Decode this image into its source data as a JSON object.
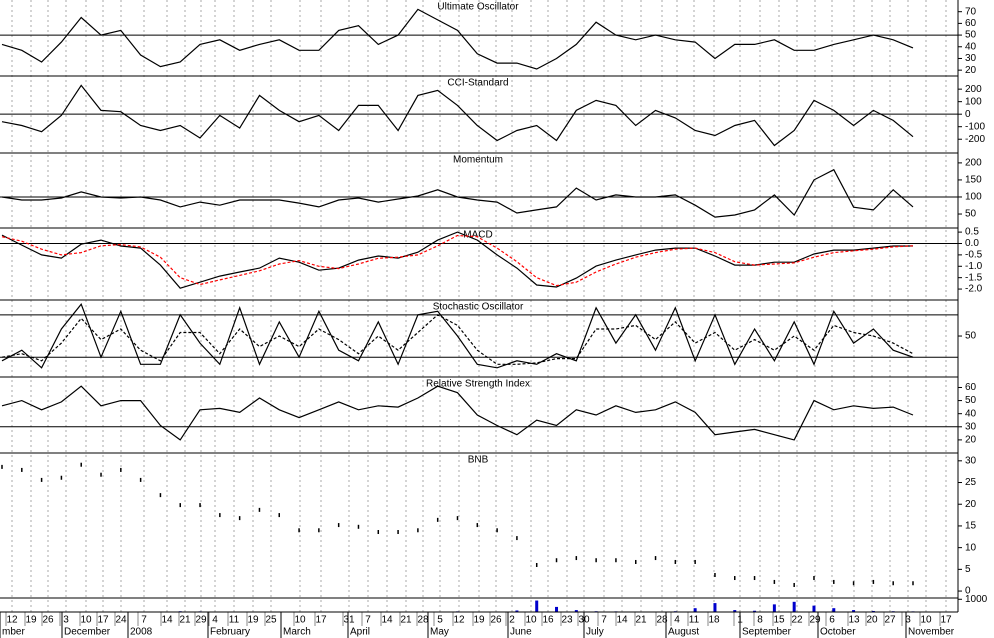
{
  "chart_data": [
    {
      "type": "line",
      "title": "Ultimate Oscillator",
      "ylim": [
        15,
        80
      ],
      "yticks": [
        70,
        60,
        50,
        40,
        30,
        20
      ],
      "hlines": [
        50
      ],
      "series": [
        {
          "color": "#000000",
          "values": [
            42,
            37,
            27,
            44,
            65,
            50,
            54,
            33,
            23,
            27,
            42,
            46,
            37,
            42,
            46,
            37,
            37,
            54,
            58,
            42,
            50,
            72,
            63,
            54,
            34,
            26,
            26,
            21,
            30,
            42,
            61,
            50,
            46,
            50,
            46,
            44,
            30,
            42,
            42,
            46,
            37,
            37,
            42,
            46,
            50,
            46,
            39
          ]
        }
      ]
    },
    {
      "type": "line",
      "title": "CCI-Standard",
      "ylim": [
        -310,
        305
      ],
      "yticks": [
        200,
        100,
        0,
        -100,
        -200
      ],
      "hlines": [
        0
      ],
      "series": [
        {
          "color": "#000000",
          "values": [
            -60,
            -90,
            -140,
            -10,
            230,
            30,
            20,
            -90,
            -130,
            -90,
            -190,
            -10,
            -110,
            150,
            30,
            -60,
            -10,
            -130,
            70,
            70,
            -130,
            150,
            190,
            70,
            -90,
            -210,
            -130,
            -90,
            -210,
            30,
            110,
            70,
            -90,
            30,
            -30,
            -130,
            -170,
            -90,
            -50,
            -250,
            -130,
            110,
            30,
            -90,
            30,
            -50,
            -180
          ]
        }
      ]
    },
    {
      "type": "line",
      "title": "Momentum",
      "ylim": [
        9,
        229
      ],
      "yticks": [
        200,
        150,
        100,
        50
      ],
      "hlines": [
        100
      ],
      "series": [
        {
          "color": "#000000",
          "values": [
            100,
            91,
            91,
            97,
            115,
            100,
            97,
            100,
            91,
            71,
            85,
            76,
            91,
            91,
            91,
            82,
            71,
            91,
            97,
            85,
            94,
            103,
            121,
            100,
            91,
            85,
            53,
            62,
            71,
            126,
            91,
            106,
            100,
            100,
            106,
            76,
            41,
            47,
            62,
            106,
            47,
            150,
            180,
            70,
            62,
            121,
            71
          ]
        }
      ]
    },
    {
      "type": "line",
      "title": "MACD",
      "ylim": [
        -2.48,
        0.68
      ],
      "yticks": [
        0.5,
        {
          "value": 0,
          "label": "0.0"
        },
        -0.5,
        {
          "value": -1,
          "label": "-1.0"
        },
        -1.5,
        {
          "value": -2,
          "label": "-2.0"
        }
      ],
      "hlines": [
        0
      ],
      "series": [
        {
          "color": "#000000",
          "values": [
            0.37,
            -0.07,
            -0.5,
            -0.64,
            -0.03,
            0.15,
            -0.11,
            -0.2,
            -0.95,
            -1.96,
            -1.7,
            -1.43,
            -1.25,
            -1.08,
            -0.64,
            -0.82,
            -1.17,
            -1.08,
            -0.73,
            -0.55,
            -0.64,
            -0.38,
            0.15,
            0.5,
            0.15,
            -0.5,
            -1.08,
            -1.82,
            -1.91,
            -1.52,
            -0.99,
            -0.73,
            -0.5,
            -0.29,
            -0.2,
            -0.2,
            -0.55,
            -0.95,
            -0.95,
            -0.82,
            -0.82,
            -0.46,
            -0.29,
            -0.29,
            -0.2,
            -0.11,
            -0.11
          ]
        },
        {
          "color": "#ff0000",
          "style": "dashed",
          "values": [
            0.3,
            0.1,
            -0.25,
            -0.5,
            -0.4,
            -0.1,
            -0.05,
            -0.15,
            -0.6,
            -1.5,
            -1.8,
            -1.6,
            -1.4,
            -1.2,
            -0.9,
            -0.75,
            -1.0,
            -1.1,
            -0.9,
            -0.65,
            -0.6,
            -0.5,
            -0.1,
            0.35,
            0.3,
            -0.2,
            -0.8,
            -1.5,
            -1.85,
            -1.7,
            -1.25,
            -0.9,
            -0.6,
            -0.4,
            -0.25,
            -0.2,
            -0.4,
            -0.8,
            -0.95,
            -0.9,
            -0.85,
            -0.6,
            -0.4,
            -0.32,
            -0.25,
            -0.15,
            -0.1
          ]
        }
      ]
    },
    {
      "type": "line",
      "title": "Stochastic Oscillator",
      "ylim": [
        -8,
        101
      ],
      "yticks": [
        50
      ],
      "hlines": [
        80,
        20
      ],
      "series": [
        {
          "color": "#000000",
          "values": [
            15,
            30,
            5,
            60,
            95,
            20,
            85,
            10,
            10,
            80,
            40,
            10,
            90,
            10,
            70,
            20,
            85,
            30,
            15,
            70,
            10,
            80,
            85,
            50,
            10,
            5,
            15,
            10,
            25,
            15,
            90,
            40,
            80,
            30,
            90,
            15,
            80,
            10,
            60,
            15,
            70,
            10,
            85,
            40,
            60,
            30,
            20
          ]
        },
        {
          "color": "#000000",
          "style": "dashed",
          "values": [
            20,
            25,
            15,
            40,
            75,
            45,
            60,
            30,
            15,
            55,
            55,
            25,
            60,
            35,
            50,
            35,
            60,
            45,
            25,
            50,
            30,
            55,
            80,
            65,
            30,
            10,
            10,
            12,
            18,
            18,
            60,
            60,
            65,
            45,
            70,
            40,
            55,
            30,
            45,
            30,
            50,
            30,
            65,
            55,
            50,
            40,
            25
          ]
        }
      ]
    },
    {
      "type": "line",
      "title": "Relative Strength Index",
      "ylim": [
        10,
        68
      ],
      "yticks": [
        60,
        50,
        40,
        30,
        20
      ],
      "hlines": [
        30
      ],
      "series": [
        {
          "color": "#000000",
          "values": [
            46,
            50,
            43,
            49,
            61,
            46,
            50,
            50,
            31,
            20,
            43,
            44,
            41,
            52,
            43,
            37,
            43,
            49,
            43,
            46,
            45,
            52,
            61,
            56,
            39,
            31,
            24,
            35,
            31,
            43,
            39,
            46,
            41,
            43,
            49,
            41,
            24,
            26,
            28,
            24,
            20,
            50,
            43,
            46,
            44,
            45,
            39
          ]
        }
      ]
    },
    {
      "type": "price",
      "title": "BNB",
      "ylim": [
        -1.6,
        31.8
      ],
      "yticks": [
        30,
        25,
        20,
        15,
        10,
        5,
        0
      ],
      "series": [
        {
          "color": "#000000",
          "values": [
            28.6,
            27.9,
            25.6,
            26.1,
            29.1,
            26.8,
            27.9,
            25.6,
            22.1,
            19.8,
            19.8,
            17.5,
            16.8,
            18.7,
            17.5,
            14.0,
            14.0,
            15.2,
            14.8,
            13.6,
            13.6,
            14.0,
            16.4,
            16.8,
            15.2,
            14.0,
            12.2,
            6.0,
            7.1,
            7.6,
            7.1,
            7.1,
            6.7,
            7.6,
            6.7,
            6.7,
            3.7,
            3.0,
            3.0,
            2.1,
            1.4,
            3.0,
            2.1,
            1.8,
            2.1,
            1.8,
            1.8
          ]
        }
      ]
    },
    {
      "type": "bar",
      "ylim": [
        0,
        1100
      ],
      "yticks": [
        1000
      ],
      "series": [
        {
          "color": "#0000cc",
          "values": [
            20,
            30,
            20,
            40,
            30,
            20,
            30,
            20,
            40,
            60,
            50,
            30,
            20,
            30,
            40,
            30,
            20,
            30,
            40,
            20,
            30,
            40,
            30,
            50,
            30,
            40,
            120,
            900,
            400,
            150,
            60,
            50,
            40,
            30,
            60,
            300,
            700,
            150,
            100,
            600,
            800,
            500,
            300,
            150,
            80,
            60,
            50
          ]
        }
      ],
      "week_labels": [
        "12",
        "19",
        "26",
        "3",
        "10",
        "17",
        "24",
        "7",
        "14",
        "21",
        "29",
        "4",
        "11",
        "19",
        "25",
        "10",
        "17",
        "31",
        "7",
        "14",
        "21",
        "28",
        "5",
        "12",
        "19",
        "26",
        "2",
        "10",
        "16",
        "23",
        "30",
        "7",
        "14",
        "21",
        "28",
        "4",
        "11",
        "18",
        "1",
        "8",
        "15",
        "22",
        "29",
        "6",
        "13",
        "20",
        "27",
        "3",
        "10",
        "17"
      ],
      "month_labels": [
        "mber",
        "December",
        "2008",
        "February",
        "March",
        "April",
        "May",
        "June",
        "July",
        "August",
        "September",
        "October",
        "November"
      ]
    }
  ]
}
